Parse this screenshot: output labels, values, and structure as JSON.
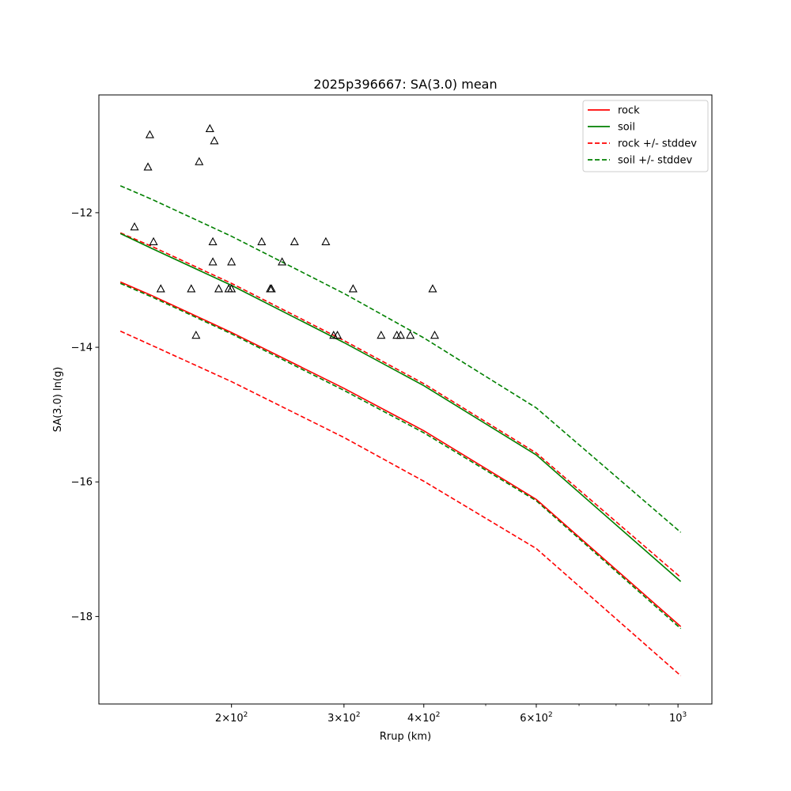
{
  "chart_data": {
    "type": "line",
    "title": "2025p396667: SA(3.0) mean",
    "xlabel": "Rrup (km)",
    "ylabel": "SA(3.0) ln(g)",
    "xscale": "log",
    "xlim": [
      124,
      1130
    ],
    "ylim": [
      -19.3,
      -10.25
    ],
    "x_major_ticks": [
      {
        "value": 200,
        "base": "2",
        "exp": "2"
      },
      {
        "value": 300,
        "base": "3",
        "exp": "2"
      },
      {
        "value": 400,
        "base": "4",
        "exp": "2"
      },
      {
        "value": 600,
        "base": "6",
        "exp": "2"
      },
      {
        "value": 1000,
        "base": "10",
        "exp": "3"
      }
    ],
    "x_minor_ticks": [
      500,
      700,
      800,
      900
    ],
    "y_ticks": [
      -12,
      -14,
      -16,
      -18
    ],
    "y_tick_labels": [
      "−12",
      "−14",
      "−16",
      "−18"
    ],
    "legend_position": "upper right",
    "grid": false,
    "series": [
      {
        "name": "rock",
        "color": "#ff0000",
        "dash": "solid",
        "x": [
          134,
          150,
          200,
          300,
          400,
          600,
          1010
        ],
        "values": [
          -13.03,
          -13.23,
          -13.78,
          -14.61,
          -15.24,
          -16.26,
          -18.15
        ]
      },
      {
        "name": "soil",
        "color": "#008000",
        "dash": "solid",
        "x": [
          134,
          150,
          200,
          300,
          400,
          600,
          1010
        ],
        "values": [
          -12.31,
          -12.53,
          -13.08,
          -13.93,
          -14.57,
          -15.6,
          -17.48
        ]
      },
      {
        "name": "rock +/- stddev",
        "color": "#ff0000",
        "dash": "dashed",
        "group": [
          {
            "x": [
              134,
              150,
              200,
              300,
              400,
              600,
              1010
            ],
            "values": [
              -12.3,
              -12.5,
              -13.05,
              -13.9,
              -14.54,
              -15.57,
              -17.42
            ]
          },
          {
            "x": [
              134,
              150,
              200,
              300,
              400,
              600,
              1010
            ],
            "values": [
              -13.76,
              -13.97,
              -14.51,
              -15.34,
              -15.99,
              -16.99,
              -18.88
            ]
          }
        ]
      },
      {
        "name": "soil +/- stddev",
        "color": "#008000",
        "dash": "dashed",
        "group": [
          {
            "x": [
              134,
              150,
              200,
              300,
              400,
              600,
              1010
            ],
            "values": [
              -11.6,
              -11.8,
              -12.35,
              -13.2,
              -13.86,
              -14.9,
              -16.75
            ]
          },
          {
            "x": [
              134,
              150,
              200,
              300,
              400,
              600,
              1010
            ],
            "values": [
              -13.05,
              -13.25,
              -13.8,
              -14.64,
              -15.27,
              -16.28,
              -18.18
            ]
          }
        ]
      }
    ],
    "observations": {
      "marker": "triangle",
      "color": "#000000",
      "points": [
        {
          "x": 185,
          "y": -10.75
        },
        {
          "x": 149,
          "y": -10.84
        },
        {
          "x": 188,
          "y": -10.93
        },
        {
          "x": 178,
          "y": -11.24
        },
        {
          "x": 148,
          "y": -11.32
        },
        {
          "x": 141,
          "y": -12.21
        },
        {
          "x": 151,
          "y": -12.43
        },
        {
          "x": 187,
          "y": -12.43
        },
        {
          "x": 223,
          "y": -12.43
        },
        {
          "x": 251,
          "y": -12.43
        },
        {
          "x": 281,
          "y": -12.43
        },
        {
          "x": 187,
          "y": -12.73
        },
        {
          "x": 200,
          "y": -12.73
        },
        {
          "x": 240,
          "y": -12.73
        },
        {
          "x": 155,
          "y": -13.13
        },
        {
          "x": 173,
          "y": -13.13
        },
        {
          "x": 191,
          "y": -13.13
        },
        {
          "x": 198,
          "y": -13.13
        },
        {
          "x": 200,
          "y": -13.13
        },
        {
          "x": 230,
          "y": -13.13
        },
        {
          "x": 231,
          "y": -13.13
        },
        {
          "x": 310,
          "y": -13.13
        },
        {
          "x": 413,
          "y": -13.13
        },
        {
          "x": 176,
          "y": -13.82
        },
        {
          "x": 289,
          "y": -13.82
        },
        {
          "x": 293,
          "y": -13.82
        },
        {
          "x": 343,
          "y": -13.82
        },
        {
          "x": 363,
          "y": -13.82
        },
        {
          "x": 368,
          "y": -13.82
        },
        {
          "x": 381,
          "y": -13.82
        },
        {
          "x": 416,
          "y": -13.82
        }
      ]
    }
  }
}
